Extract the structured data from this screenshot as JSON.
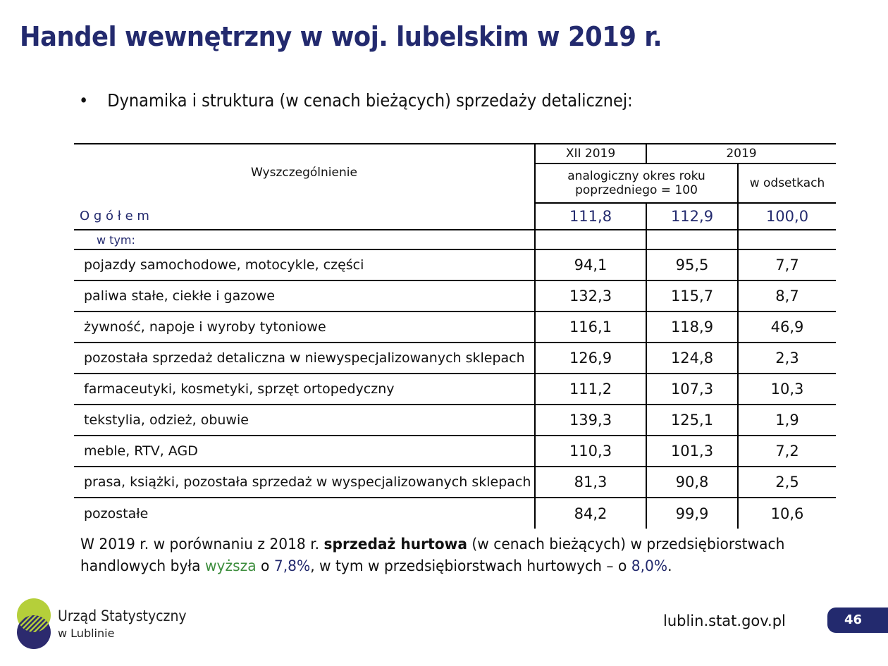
{
  "title": "Handel wewnętrzny w woj. lubelskim w 2019 r.",
  "bullet": "Dynamika i struktura (w cenach bieżących) sprzedaży detalicznej:",
  "table": {
    "header": {
      "row_label": "Wyszczególnienie",
      "col1_top": "XII 2019",
      "col23_top": "2019",
      "col12_sub": "analogiczny okres roku poprzedniego = 100",
      "col3_sub": "w odsetkach"
    },
    "total": {
      "label": "O g ó ł e m",
      "v1": "111,8",
      "v2": "112,9",
      "v3": "100,0"
    },
    "subheader": "w tym:",
    "rows": [
      {
        "label": "pojazdy samochodowe, motocykle, części",
        "v1": "94,1",
        "v2": "95,5",
        "v3": "7,7"
      },
      {
        "label": "paliwa stałe, ciekłe i gazowe",
        "v1": "132,3",
        "v2": "115,7",
        "v3": "8,7"
      },
      {
        "label": "żywność, napoje i wyroby tytoniowe",
        "v1": "116,1",
        "v2": "118,9",
        "v3": "46,9"
      },
      {
        "label": "pozostała sprzedaż detaliczna w niewyspecjalizowanych sklepach",
        "v1": "126,9",
        "v2": "124,8",
        "v3": "2,3"
      },
      {
        "label": "farmaceutyki, kosmetyki, sprzęt ortopedyczny",
        "v1": "111,2",
        "v2": "107,3",
        "v3": "10,3"
      },
      {
        "label": "tekstylia, odzież, obuwie",
        "v1": "139,3",
        "v2": "125,1",
        "v3": "1,9"
      },
      {
        "label": "meble, RTV, AGD",
        "v1": "110,3",
        "v2": "101,3",
        "v3": "7,2"
      },
      {
        "label": "prasa, książki, pozostała sprzedaż w wyspecjalizowanych sklepach",
        "v1": "81,3",
        "v2": "90,8",
        "v3": "2,5"
      },
      {
        "label": "pozostałe",
        "v1": "84,2",
        "v2": "99,9",
        "v3": "10,6"
      }
    ]
  },
  "paragraph": {
    "p1": "W 2019 r. w porównaniu z 2018 r. ",
    "bold": "sprzedaż hurtowa",
    "p2": " (w cenach bieżących) w przedsiębiorstwach",
    "p3": "handlowych była ",
    "green": "wyższa",
    "p4": " o ",
    "val1": "7,8%",
    "p5": ", w tym w przedsiębiorstwach hurtowych – o ",
    "val2": "8,0%",
    "p6": "."
  },
  "footer": {
    "logo_name": "Urząd Statystyczny",
    "logo_sub": "w Lublinie",
    "url": "lublin.stat.gov.pl",
    "page": "46"
  },
  "colors": {
    "navy": "#232a6e",
    "green": "#3e8e3e",
    "lime": "#b5cf3a"
  }
}
